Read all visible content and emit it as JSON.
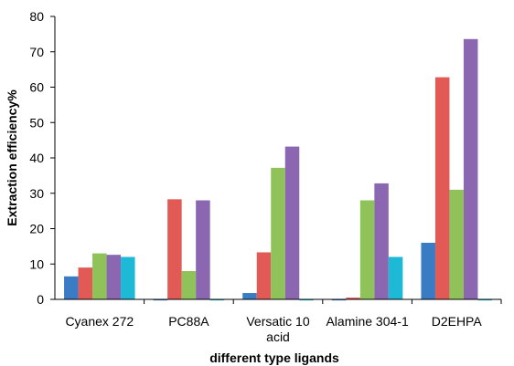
{
  "chart_data": {
    "type": "bar",
    "title": "",
    "xlabel": "different type ligands",
    "ylabel": "Extraction efficiency%",
    "ylim": [
      0,
      80
    ],
    "yticks": [
      0,
      10,
      20,
      30,
      40,
      50,
      60,
      70,
      80
    ],
    "grid": false,
    "legend": "none",
    "categories": [
      "Cyanex 272",
      "PC88A",
      "Versatic 10 acid",
      "Alamine 304-1",
      "D2EHPA"
    ],
    "category_lines": [
      [
        "Cyanex 272"
      ],
      [
        "PC88A"
      ],
      [
        "Versatic 10",
        "acid"
      ],
      [
        "Alamine 304-1"
      ],
      [
        "D2EHPA"
      ]
    ],
    "series": [
      {
        "color": "#3a7cc4",
        "values": [
          6.5,
          -0.3,
          1.8,
          -0.3,
          16
        ]
      },
      {
        "color": "#e15a56",
        "values": [
          9,
          28.3,
          13.3,
          0.5,
          62.8
        ]
      },
      {
        "color": "#8fc35a",
        "values": [
          13,
          8,
          37.2,
          28,
          31
        ]
      },
      {
        "color": "#8a67b0",
        "values": [
          12.6,
          28,
          43.2,
          32.8,
          73.6
        ]
      },
      {
        "color": "#1eb9d6",
        "values": [
          12,
          -0.3,
          -0.3,
          12,
          -0.3
        ]
      }
    ]
  }
}
